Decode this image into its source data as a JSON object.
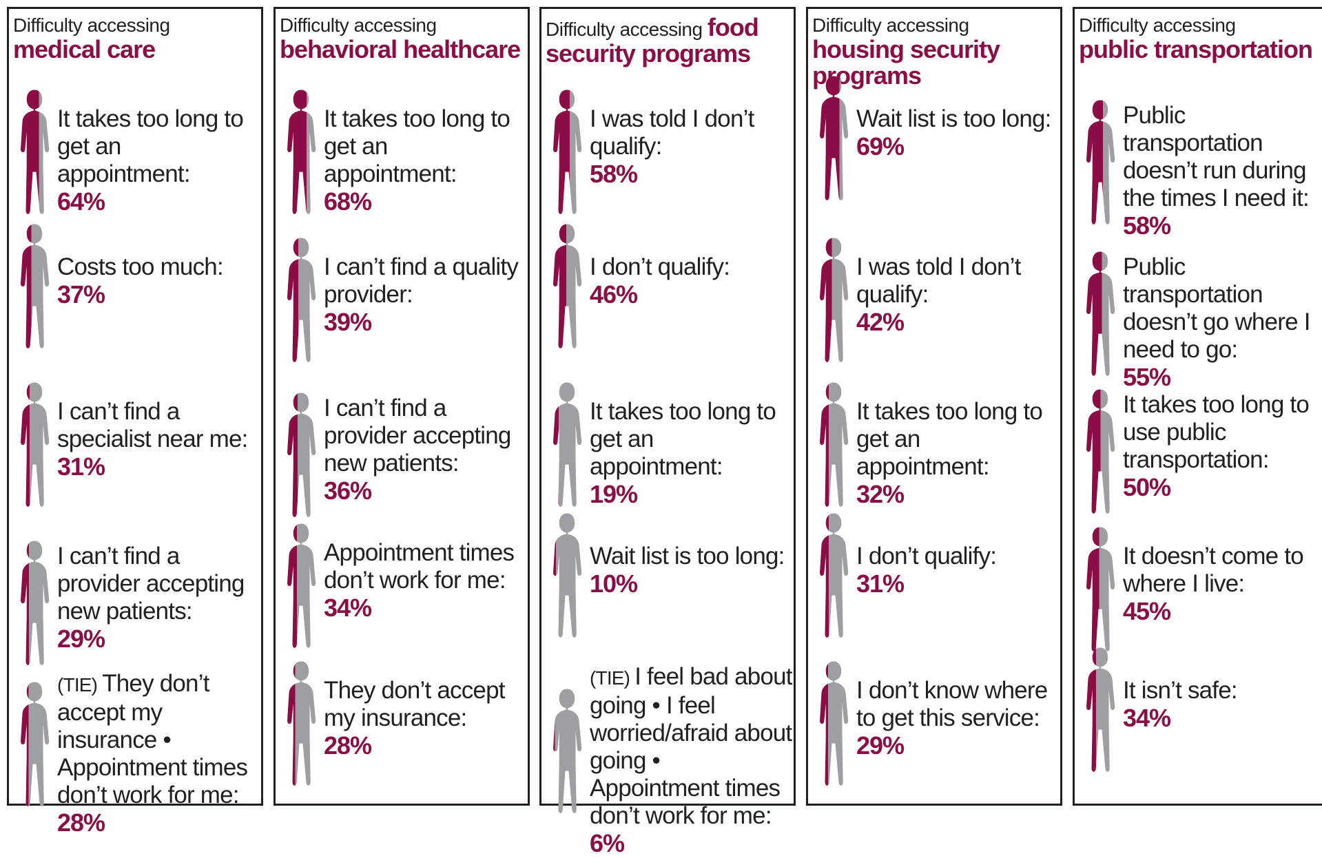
{
  "colors": {
    "accent": "#8b0d46",
    "figure_filled": "#8b0d46",
    "figure_empty": "#9d9fa2",
    "text": "#231f20"
  },
  "chart_data": {
    "type": "table",
    "panels": [
      {
        "prefix": "Difficulty accessing",
        "topic": "medical care",
        "items": [
          {
            "label": "It takes too long to get an appointment:",
            "value": 64,
            "display": "64%"
          },
          {
            "label": "Costs too much:",
            "value": 37,
            "display": "37%"
          },
          {
            "label": "I can’t find a specialist near me:",
            "value": 31,
            "display": "31%"
          },
          {
            "label": "I can’t find a provider accepting new patients:",
            "value": 29,
            "display": "29%"
          },
          {
            "tie": "(TIE)",
            "label": "They don’t accept my insurance • Appointment times don’t work for me:",
            "value": 28,
            "display": "28%"
          }
        ]
      },
      {
        "prefix": "Difficulty accessing",
        "topic": "behavioral healthcare",
        "items": [
          {
            "label": "It takes too long to get an appointment:",
            "value": 68,
            "display": "68%"
          },
          {
            "label": "I can’t find a quality provider:",
            "value": 39,
            "display": "39%"
          },
          {
            "label": "I can’t find a provider accepting new patients:",
            "value": 36,
            "display": "36%"
          },
          {
            "label": "Appointment times don’t work for me:",
            "value": 34,
            "display": "34%"
          },
          {
            "label": "They don’t accept my insurance:",
            "value": 28,
            "display": "28%"
          }
        ]
      },
      {
        "prefix": "Difficulty accessing",
        "topic": "food security programs",
        "items": [
          {
            "label": "I was told I don’t qualify:",
            "value": 58,
            "display": "58%"
          },
          {
            "label": "I don’t qualify:",
            "value": 46,
            "display": "46%"
          },
          {
            "label": "It takes too long to get an appointment:",
            "value": 19,
            "display": "19%"
          },
          {
            "label": "Wait list is too long:",
            "value": 10,
            "display": "10%"
          },
          {
            "tie": "(TIE)",
            "label": "I feel bad about going • I feel worried/afraid about going • Appointment times don’t work for me:",
            "value": 6,
            "display": "6%"
          }
        ]
      },
      {
        "prefix": "Difficulty accessing",
        "topic": "housing security programs",
        "items": [
          {
            "label": "Wait list is too long:",
            "value": 69,
            "display": "69%"
          },
          {
            "label": "I was told I don’t qualify:",
            "value": 42,
            "display": "42%"
          },
          {
            "label": "It takes too long to get an appointment:",
            "value": 32,
            "display": "32%"
          },
          {
            "label": "I don’t qualify:",
            "value": 31,
            "display": "31%"
          },
          {
            "label": "I don’t know where to get this service:",
            "value": 29,
            "display": "29%"
          }
        ]
      },
      {
        "prefix": "Difficulty accessing",
        "topic": "public transportation",
        "items": [
          {
            "label": "Public transportation doesn’t run during the times I need it:",
            "value": 58,
            "display": "58%"
          },
          {
            "label": "Public transportation doesn’t go where I need to go:",
            "value": 55,
            "display": "55%"
          },
          {
            "label": "It takes too long to use public transportation:",
            "value": 50,
            "display": "50%"
          },
          {
            "label": "It doesn’t come to where I live:",
            "value": 45,
            "display": "45%"
          },
          {
            "label": "It isn’t safe:",
            "value": 34,
            "display": "34%"
          }
        ]
      }
    ]
  }
}
